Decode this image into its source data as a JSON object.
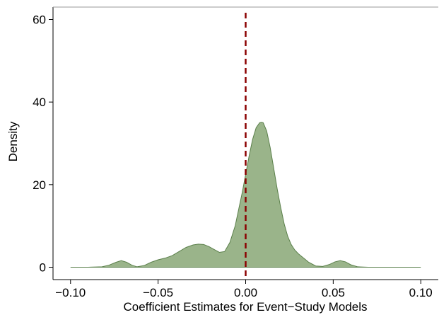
{
  "chart_data": {
    "type": "area",
    "xlabel": "Coefficient Estimates for Event−Study Models",
    "ylabel": "Density",
    "xlim": [
      -0.11,
      0.11
    ],
    "ylim": [
      -3,
      63
    ],
    "x_ticks": [
      -0.1,
      -0.05,
      0.0,
      0.05,
      0.1
    ],
    "x_tick_labels": [
      "−0.10",
      "−0.05",
      "0.00",
      "0.05",
      "0.10"
    ],
    "y_ticks": [
      0,
      20,
      40,
      60
    ],
    "y_tick_labels": [
      "0",
      "20",
      "40",
      "60"
    ],
    "reference_line": {
      "x": 0.0,
      "style": "dashed",
      "color": "#8b0000"
    },
    "fill_color": "#9ab48a",
    "line_color": "#5a7f4a",
    "grid": false,
    "series": [
      {
        "x": [
          -0.1,
          -0.09,
          -0.082,
          -0.078,
          -0.074,
          -0.071,
          -0.068,
          -0.065,
          -0.062,
          -0.058,
          -0.054,
          -0.05,
          -0.046,
          -0.042,
          -0.038,
          -0.034,
          -0.03,
          -0.027,
          -0.024,
          -0.021,
          -0.018,
          -0.015,
          -0.012,
          -0.009,
          -0.006,
          -0.004,
          -0.002,
          0.0,
          0.002,
          0.004,
          0.006,
          0.008,
          0.009,
          0.01,
          0.012,
          0.014,
          0.016,
          0.018,
          0.02,
          0.022,
          0.024,
          0.026,
          0.028,
          0.03,
          0.032,
          0.034,
          0.036,
          0.04,
          0.044,
          0.048,
          0.051,
          0.054,
          0.057,
          0.06,
          0.064,
          0.07,
          0.08,
          0.1
        ],
        "y": [
          0,
          0,
          0.1,
          0.5,
          1.2,
          1.6,
          1.2,
          0.5,
          0.1,
          0.4,
          1.2,
          1.8,
          2.2,
          2.8,
          3.8,
          4.8,
          5.4,
          5.6,
          5.5,
          5.0,
          4.3,
          3.6,
          3.8,
          6.0,
          10.0,
          14.0,
          18.0,
          22.5,
          27.0,
          31.0,
          33.8,
          35.0,
          35.1,
          35.0,
          33.0,
          29.0,
          24.0,
          19.0,
          14.5,
          10.5,
          7.5,
          5.5,
          4.2,
          3.3,
          2.6,
          1.9,
          1.2,
          0.3,
          0.2,
          0.7,
          1.3,
          1.6,
          1.3,
          0.6,
          0.1,
          0,
          0,
          0
        ]
      }
    ]
  }
}
